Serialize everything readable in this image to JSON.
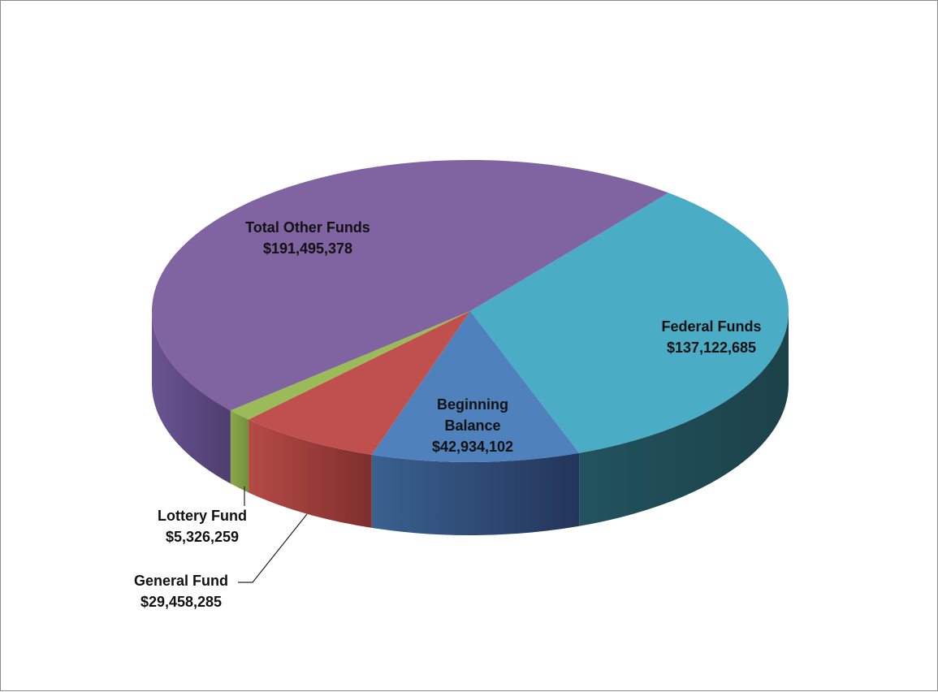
{
  "chart_data": {
    "type": "pie",
    "title": "",
    "three_d": true,
    "slices": [
      {
        "key": "federal",
        "name": "Federal Funds",
        "value": 137122685,
        "value_label": "$137,122,685",
        "color": "#4BACC6"
      },
      {
        "key": "beginning",
        "name": "Beginning Balance",
        "name_lines": [
          "Beginning",
          "Balance"
        ],
        "value": 42934102,
        "value_label": "$42,934,102",
        "color": "#4F81BD"
      },
      {
        "key": "general",
        "name": "General Fund",
        "value": 29458285,
        "value_label": "$29,458,285",
        "color": "#C0504D"
      },
      {
        "key": "lottery",
        "name": "Lottery Fund",
        "value": 5326259,
        "value_label": "$5,326,259",
        "color": "#9BBB59"
      },
      {
        "key": "other",
        "name": "Total Other Funds",
        "value": 191495378,
        "value_label": "$191,495,378",
        "color": "#8064A2"
      }
    ],
    "legend": "none",
    "data_labels": "name and value"
  }
}
